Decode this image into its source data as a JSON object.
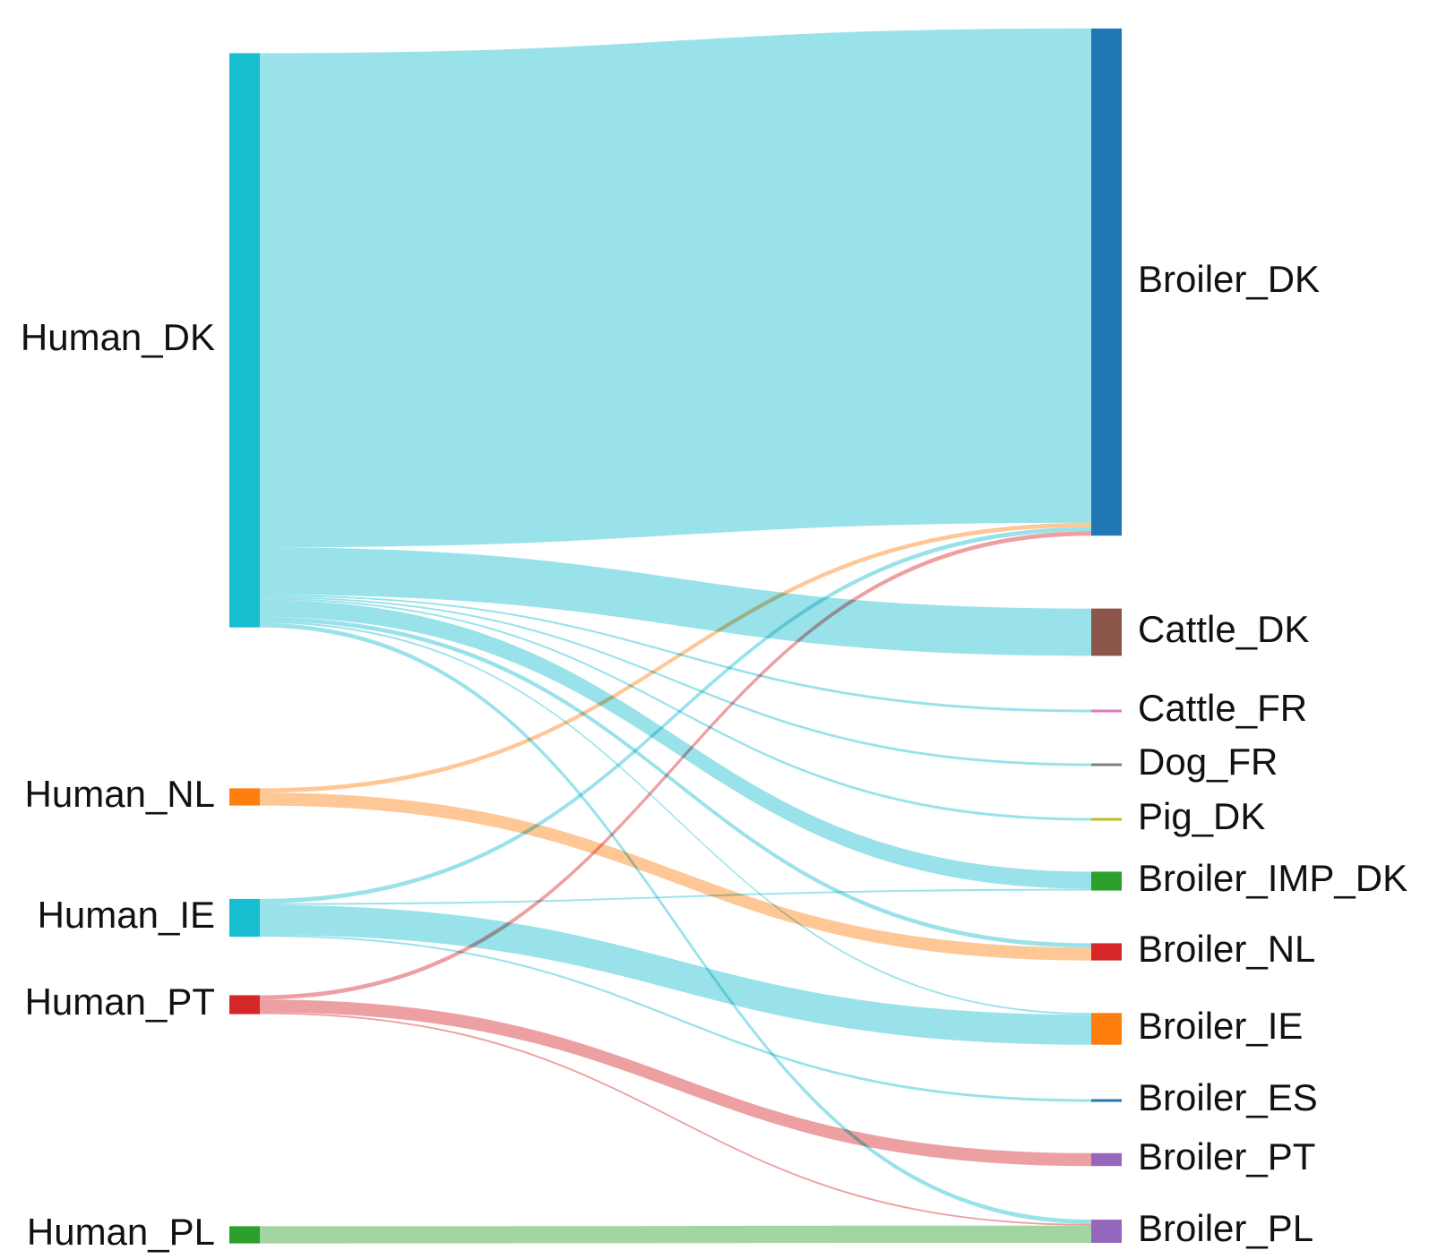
{
  "sources": [
    {
      "id": "Human_DK",
      "label": "Human_DK",
      "color": "#17becf"
    },
    {
      "id": "Human_NL",
      "label": "Human_NL",
      "color": "#ff7f0e"
    },
    {
      "id": "Human_IE",
      "label": "Human_IE",
      "color": "#17becf"
    },
    {
      "id": "Human_PT",
      "label": "Human_PT",
      "color": "#d62728"
    },
    {
      "id": "Human_PL",
      "label": "Human_PL",
      "color": "#2ca02c"
    }
  ],
  "targets": [
    {
      "id": "Broiler_DK",
      "label": "Broiler_DK",
      "color": "#1f77b4"
    },
    {
      "id": "Cattle_DK",
      "label": "Cattle_DK",
      "color": "#8c564b"
    },
    {
      "id": "Cattle_FR",
      "label": "Cattle_FR",
      "color": "#e377c2"
    },
    {
      "id": "Dog_FR",
      "label": "Dog_FR",
      "color": "#7f7f7f"
    },
    {
      "id": "Pig_DK",
      "label": "Pig_DK",
      "color": "#bcbd22"
    },
    {
      "id": "Broiler_IMP_DK",
      "label": "Broiler_IMP_DK",
      "color": "#2ca02c"
    },
    {
      "id": "Broiler_NL",
      "label": "Broiler_NL",
      "color": "#d62728"
    },
    {
      "id": "Broiler_IE",
      "label": "Broiler_IE",
      "color": "#ff7f0e"
    },
    {
      "id": "Broiler_ES",
      "label": "Broiler_ES",
      "color": "#1f77b4"
    },
    {
      "id": "Broiler_PT",
      "label": "Broiler_PT",
      "color": "#9467bd"
    },
    {
      "id": "Broiler_PL",
      "label": "Broiler_PL",
      "color": "#9467bd"
    }
  ],
  "links": [
    {
      "source": "Human_DK",
      "target": "Broiler_DK",
      "value": 115
    },
    {
      "source": "Human_DK",
      "target": "Cattle_DK",
      "value": 11
    },
    {
      "source": "Human_DK",
      "target": "Cattle_FR",
      "value": 0.4
    },
    {
      "source": "Human_DK",
      "target": "Dog_FR",
      "value": 0.4
    },
    {
      "source": "Human_DK",
      "target": "Pig_DK",
      "value": 0.4
    },
    {
      "source": "Human_DK",
      "target": "Broiler_IMP_DK",
      "value": 4
    },
    {
      "source": "Human_DK",
      "target": "Broiler_NL",
      "value": 1
    },
    {
      "source": "Human_DK",
      "target": "Broiler_IE",
      "value": 0.4
    },
    {
      "source": "Human_DK",
      "target": "Broiler_PL",
      "value": 1
    },
    {
      "source": "Human_NL",
      "target": "Broiler_DK",
      "value": 1
    },
    {
      "source": "Human_NL",
      "target": "Broiler_NL",
      "value": 3
    },
    {
      "source": "Human_IE",
      "target": "Broiler_DK",
      "value": 1
    },
    {
      "source": "Human_IE",
      "target": "Broiler_IMP_DK",
      "value": 0.4
    },
    {
      "source": "Human_IE",
      "target": "Broiler_IE",
      "value": 7
    },
    {
      "source": "Human_IE",
      "target": "Broiler_ES",
      "value": 0.4
    },
    {
      "source": "Human_PT",
      "target": "Broiler_DK",
      "value": 1
    },
    {
      "source": "Human_PT",
      "target": "Broiler_PT",
      "value": 3
    },
    {
      "source": "Human_PT",
      "target": "Broiler_PL",
      "value": 0.4
    },
    {
      "source": "Human_PL",
      "target": "Broiler_PL",
      "value": 4
    }
  ]
}
